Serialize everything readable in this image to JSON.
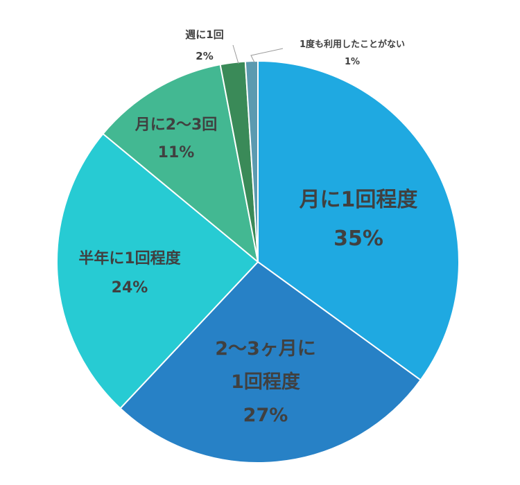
{
  "chart_data": {
    "type": "pie",
    "start_angle_deg": 0,
    "direction": "clockwise",
    "slices": [
      {
        "name": "月に1回程度",
        "value": 35,
        "label": "35%",
        "color": "#1fa9e1"
      },
      {
        "name": "2〜3ヶ月に\n1回程度",
        "value": 27,
        "label": "27%",
        "color": "#2781c6"
      },
      {
        "name": "半年に1回程度",
        "value": 24,
        "label": "24%",
        "color": "#27cbd3"
      },
      {
        "name": "月に2〜3回",
        "value": 11,
        "label": "11%",
        "color": "#43b892"
      },
      {
        "name": "週に1回",
        "value": 2,
        "label": "2%",
        "color": "#3a8a58"
      },
      {
        "name": "1度も利用したことがない",
        "value": 1,
        "label": "1%",
        "color": "#5b9ab0"
      }
    ],
    "legend": "none"
  }
}
